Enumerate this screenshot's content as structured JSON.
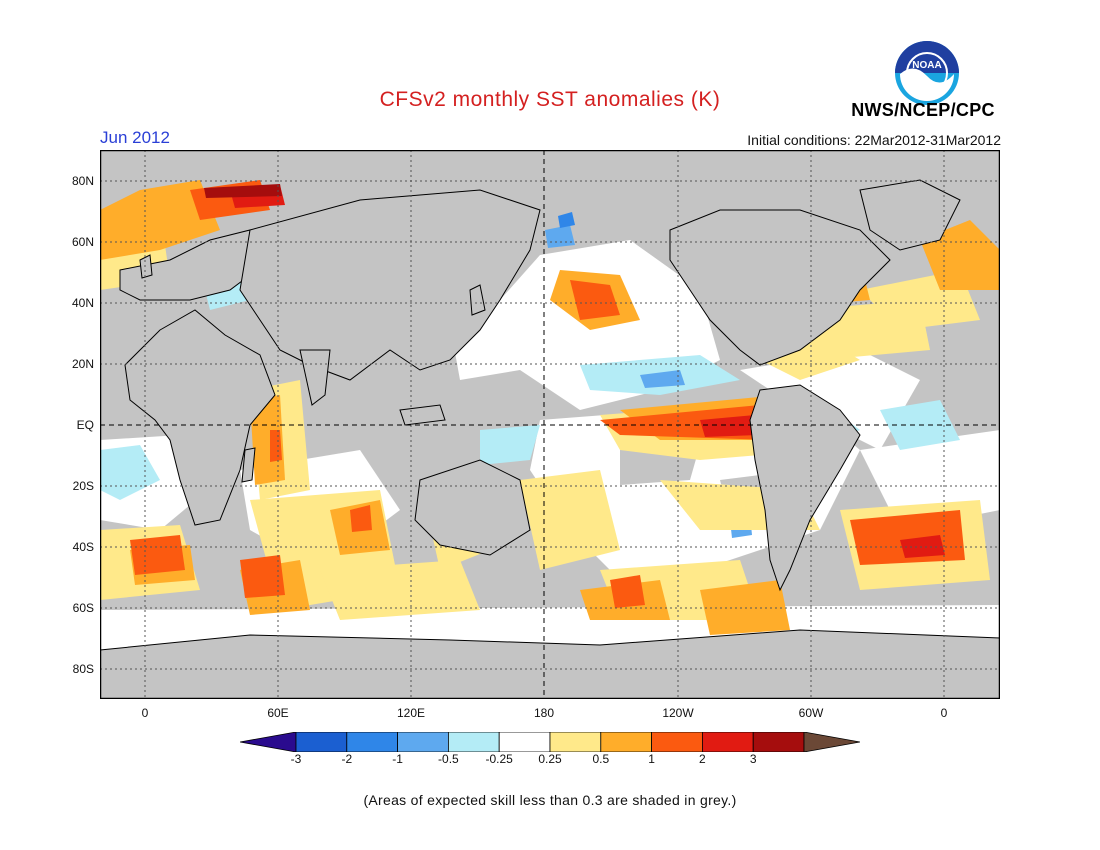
{
  "header": {
    "title": "CFSv2 monthly SST anomalies (K)",
    "month": "Jun 2012",
    "initial_conditions": "Initial conditions: 22Mar2012-31Mar2012",
    "agency": "NWS/NCEP/CPC",
    "logo_text": "NOAA"
  },
  "map": {
    "lat_labels": [
      "80N",
      "60N",
      "40N",
      "20N",
      "EQ",
      "20S",
      "40S",
      "60S",
      "80S"
    ],
    "lon_labels": [
      "0",
      "60E",
      "120E",
      "180",
      "120W",
      "60W",
      "0"
    ],
    "projection": "equirectangular, 20W-20E wrap",
    "grid": "dotted",
    "land_color": "#c4c4c4",
    "low_skill_color": "#c4c4c4"
  },
  "colorbar": {
    "labels": [
      "-3",
      "-2",
      "-1",
      "-0.5",
      "-0.25",
      "0.25",
      "0.5",
      "1",
      "2",
      "3"
    ],
    "colors": [
      "#2a0b8e",
      "#1b5fd1",
      "#2f86e8",
      "#5ea9ef",
      "#b4ecf6",
      "#ffffff",
      "#ffe98a",
      "#ffad2a",
      "#fb5a10",
      "#e11b12",
      "#a50d0d",
      "#6b4836"
    ]
  },
  "footer": {
    "note": "(Areas of expected skill less than 0.3 are shaded in grey.)"
  }
}
